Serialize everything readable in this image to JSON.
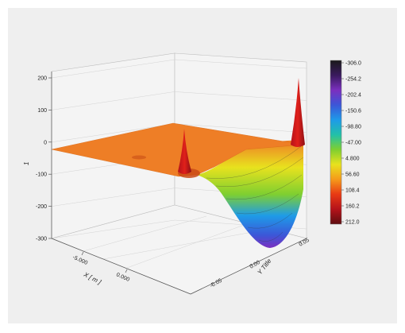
{
  "chart_data": {
    "type": "surface3d",
    "title": "",
    "z_axis": {
      "label": "1",
      "ticks": [
        "200",
        "100",
        "0",
        "-100",
        "-200",
        "-300"
      ],
      "range": [
        -300,
        200
      ]
    },
    "x_axis": {
      "label": "X [ m ]",
      "ticks": [
        "-5.000",
        "0.000"
      ]
    },
    "y_axis": {
      "label": "Y Title",
      "ticks": [
        "0.05",
        "0.00",
        "-0.05"
      ]
    },
    "surface": {
      "base_level": 0,
      "peaks": [
        {
          "location": "center",
          "z": 60
        },
        {
          "location": "right corner",
          "z": 210
        }
      ],
      "well": {
        "location": "front right",
        "min_z": -306
      }
    },
    "colorbar": {
      "labels": [
        "-306.0",
        "-254.2",
        "-202.4",
        "-150.6",
        "-98.80",
        "-47.00",
        "4.800",
        "56.60",
        "108.4",
        "160.2",
        "212.0"
      ],
      "colors": [
        "#1a1a1a",
        "#3a1a5e",
        "#7b2fbf",
        "#3b57d8",
        "#1e9be8",
        "#22c1a8",
        "#7fcf30",
        "#e8e21e",
        "#f59a1a",
        "#e83a14",
        "#b4121a",
        "#5e0d10"
      ]
    },
    "colors": {
      "surface_base": "#ee7e26",
      "well_deep": "#7b2fbf",
      "well_mid": "#1e9be8",
      "well_shallow": "#e8e21e",
      "peak": "#e0201a"
    }
  }
}
